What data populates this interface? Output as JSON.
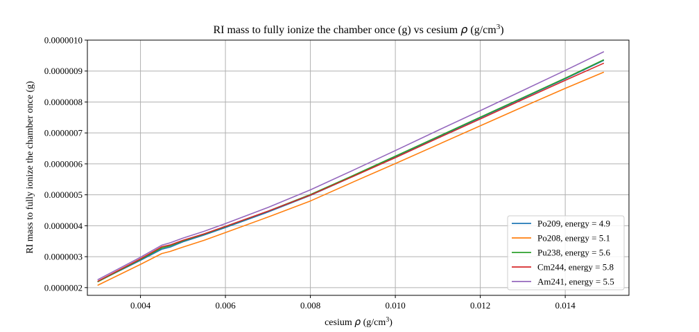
{
  "chart_data": {
    "type": "line",
    "title_main": "RI mass to fully ionize the chamber once (g) vs cesium ",
    "title_rho": "ρ",
    "title_unit": " (g/cm",
    "title_sup": "3",
    "title_end": ")",
    "xlabel_main": "cesium ",
    "xlabel_rho": "ρ",
    "xlabel_unit": " (g/cm",
    "xlabel_sup": "3",
    "xlabel_end": ")",
    "ylabel": "RI mass to fully ionize the chamber once (g)",
    "xlim": [
      0.00275,
      0.0155
    ],
    "ylim": [
      1.75e-07,
      1e-06
    ],
    "xticks": [
      0.004,
      0.006,
      0.008,
      0.01,
      0.012,
      0.014
    ],
    "xtick_labels": [
      "0.004",
      "0.006",
      "0.008",
      "0.010",
      "0.012",
      "0.014"
    ],
    "yticks": [
      2e-07,
      3e-07,
      4e-07,
      5e-07,
      6e-07,
      7e-07,
      8e-07,
      9e-07,
      1e-06
    ],
    "ytick_labels": [
      "0.0000002",
      "0.0000003",
      "0.0000004",
      "0.0000005",
      "0.0000006",
      "0.0000007",
      "0.0000008",
      "0.0000009",
      "0.0000010"
    ],
    "grid": true,
    "legend_position": "lower-right",
    "series": [
      {
        "name": "Po209, energy = 4.9",
        "color": "#1f77b4",
        "x": [
          0.003,
          0.004,
          0.0045,
          0.0047,
          0.005,
          0.0055,
          0.006,
          0.007,
          0.008,
          0.009,
          0.01,
          0.011,
          0.012,
          0.013,
          0.014,
          0.0149
        ],
        "y": [
          2.2e-07,
          2.88e-07,
          3.24e-07,
          3.31e-07,
          3.48e-07,
          3.7e-07,
          3.94e-07,
          4.44e-07,
          4.98e-07,
          5.59e-07,
          6.23e-07,
          6.86e-07,
          7.49e-07,
          8.12e-07,
          8.75e-07,
          9.34e-07
        ]
      },
      {
        "name": "Po208, energy = 5.1",
        "color": "#ff7f0e",
        "x": [
          0.003,
          0.004,
          0.0045,
          0.0047,
          0.005,
          0.0055,
          0.006,
          0.007,
          0.008,
          0.009,
          0.01,
          0.011,
          0.012,
          0.013,
          0.014,
          0.0149
        ],
        "y": [
          2.08e-07,
          2.75e-07,
          3.1e-07,
          3.17e-07,
          3.31e-07,
          3.53e-07,
          3.78e-07,
          4.28e-07,
          4.8e-07,
          5.41e-07,
          6.01e-07,
          6.62e-07,
          7.23e-07,
          7.84e-07,
          8.44e-07,
          8.96e-07
        ]
      },
      {
        "name": "Pu238, energy = 5.6",
        "color": "#2ca02c",
        "x": [
          0.003,
          0.004,
          0.0045,
          0.0047,
          0.005,
          0.0055,
          0.006,
          0.007,
          0.008,
          0.009,
          0.01,
          0.011,
          0.012,
          0.013,
          0.014,
          0.0149
        ],
        "y": [
          2.19e-07,
          2.91e-07,
          3.28e-07,
          3.35e-07,
          3.51e-07,
          3.73e-07,
          3.97e-07,
          4.47e-07,
          5.01e-07,
          5.62e-07,
          6.25e-07,
          6.88e-07,
          7.51e-07,
          8.14e-07,
          8.77e-07,
          9.36e-07
        ]
      },
      {
        "name": "Cm244, energy = 5.8",
        "color": "#d62728",
        "x": [
          0.003,
          0.004,
          0.0045,
          0.0047,
          0.005,
          0.0055,
          0.006,
          0.007,
          0.008,
          0.009,
          0.01,
          0.011,
          0.012,
          0.013,
          0.014,
          0.0149
        ],
        "y": [
          2.21e-07,
          2.93e-07,
          3.32e-07,
          3.38e-07,
          3.53e-07,
          3.74e-07,
          3.98e-07,
          4.47e-07,
          4.99e-07,
          5.59e-07,
          6.2e-07,
          6.83e-07,
          7.45e-07,
          8.08e-07,
          8.7e-07,
          9.25e-07
        ]
      },
      {
        "name": "Am241, energy = 5.5",
        "color": "#9467bd",
        "x": [
          0.003,
          0.004,
          0.0045,
          0.0047,
          0.005,
          0.0055,
          0.006,
          0.007,
          0.008,
          0.009,
          0.01,
          0.011,
          0.012,
          0.013,
          0.014,
          0.0149
        ],
        "y": [
          2.26e-07,
          2.98e-07,
          3.37e-07,
          3.45e-07,
          3.6e-07,
          3.82e-07,
          4.07e-07,
          4.59e-07,
          5.16e-07,
          5.79e-07,
          6.43e-07,
          7.08e-07,
          7.72e-07,
          8.37e-07,
          9.02e-07,
          9.62e-07
        ]
      }
    ]
  }
}
